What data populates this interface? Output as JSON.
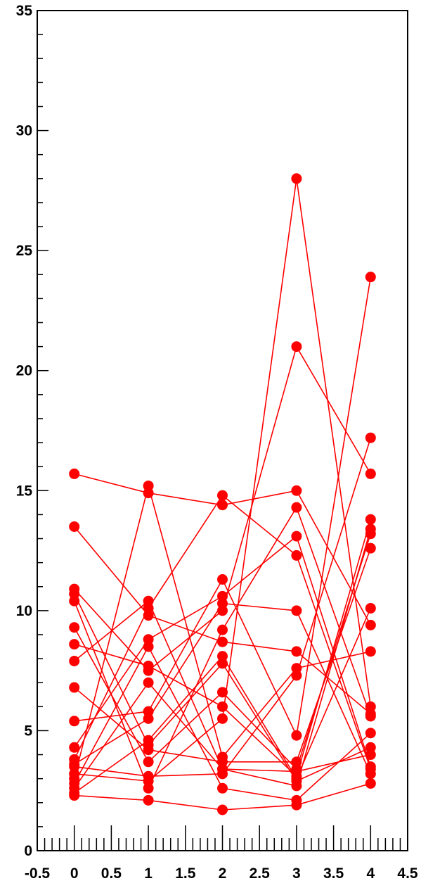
{
  "chart_data": {
    "type": "line",
    "title": "",
    "xlabel": "",
    "ylabel": "",
    "xlim": [
      -0.5,
      4.5
    ],
    "ylim": [
      0,
      35
    ],
    "x": [
      0,
      1,
      2,
      3,
      4
    ],
    "x_ticks": [
      "-0.5",
      "0",
      "0.5",
      "1",
      "1.5",
      "2",
      "2.5",
      "3",
      "3.5",
      "4",
      "4.5"
    ],
    "y_ticks": [
      "0",
      "5",
      "10",
      "15",
      "20",
      "25",
      "30",
      "35"
    ],
    "grid": false,
    "legend": "none",
    "color": "#ff0000",
    "series": [
      {
        "values": [
          15.7,
          14.9,
          14.4,
          15.0,
          9.4
        ]
      },
      {
        "values": [
          13.5,
          9.8,
          8.7,
          8.3,
          5.7
        ]
      },
      {
        "values": [
          10.9,
          7.5,
          10.0,
          21.0,
          15.7
        ]
      },
      {
        "values": [
          10.7,
          4.4,
          7.8,
          2.9,
          4.3
        ]
      },
      {
        "values": [
          10.4,
          2.6,
          9.2,
          14.3,
          5.6
        ]
      },
      {
        "values": [
          9.3,
          3.7,
          6.6,
          3.4,
          13.2
        ]
      },
      {
        "values": [
          8.6,
          7.7,
          6.0,
          3.1,
          13.8
        ]
      },
      {
        "values": [
          7.9,
          10.4,
          3.4,
          2.7,
          13.4
        ]
      },
      {
        "values": [
          6.8,
          4.2,
          3.7,
          3.7,
          12.6
        ]
      },
      {
        "values": [
          5.4,
          5.8,
          11.3,
          4.8,
          23.9
        ]
      },
      {
        "values": [
          4.3,
          8.8,
          10.6,
          13.1,
          3.5
        ]
      },
      {
        "values": [
          3.8,
          10.1,
          14.8,
          12.3,
          3.4
        ]
      },
      {
        "values": [
          3.6,
          5.5,
          10.3,
          10.0,
          3.2
        ]
      },
      {
        "values": [
          3.5,
          3.1,
          3.2,
          7.3,
          17.2
        ]
      },
      {
        "values": [
          3.2,
          2.9,
          5.5,
          28.0,
          6.0
        ]
      },
      {
        "values": [
          3.0,
          15.2,
          3.9,
          7.6,
          8.3
        ]
      },
      {
        "values": [
          2.8,
          8.5,
          2.6,
          2.1,
          4.9
        ]
      },
      {
        "values": [
          2.6,
          7.0,
          3.4,
          3.3,
          4.0
        ]
      },
      {
        "values": [
          2.4,
          4.6,
          8.1,
          3.0,
          10.1
        ]
      },
      {
        "values": [
          2.3,
          2.1,
          1.7,
          1.9,
          2.8
        ]
      }
    ]
  }
}
